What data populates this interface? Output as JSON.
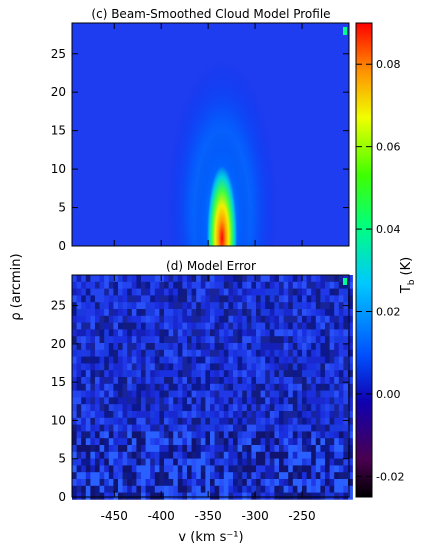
{
  "chart_data": [
    {
      "type": "heatmap",
      "title": "(c) Beam-Smoothed Cloud Model Profile",
      "xlim": [
        -495,
        -200
      ],
      "ylim": [
        0,
        29
      ],
      "y_ticks": [
        0,
        5,
        10,
        15,
        20,
        25
      ],
      "value_range": [
        -0.025,
        0.09
      ],
      "peak": {
        "x": -340,
        "y": 1,
        "value": 0.09
      },
      "feature": "emission concentrated near v = -340, decreasing with rho; faint halo extending to rho ~ 24"
    },
    {
      "type": "heatmap",
      "title": "(d) Model Error",
      "xlabel": "v (km s⁻¹)",
      "x_ticks": [
        -450,
        -400,
        -350,
        -300,
        -250
      ],
      "xlim": [
        -495,
        -200
      ],
      "ylim": [
        0,
        29
      ],
      "y_ticks": [
        0,
        5,
        10,
        15,
        20,
        25
      ],
      "value_range": [
        -0.025,
        0.09
      ],
      "feature": "noise-like residuals mostly between -0.01 and 0.01"
    }
  ],
  "shared_ylabel": "ρ (arcmin)",
  "colorbar": {
    "label": "T",
    "label_sub": "b",
    "label_unit": "(K)",
    "range": [
      -0.025,
      0.09
    ],
    "ticks": [
      -0.02,
      0.0,
      0.02,
      0.04,
      0.06,
      0.08
    ],
    "tick_labels": [
      "-0.02",
      "0.00",
      "0.02",
      "0.04",
      "0.06",
      "0.08"
    ],
    "colormap": "rainbow"
  }
}
